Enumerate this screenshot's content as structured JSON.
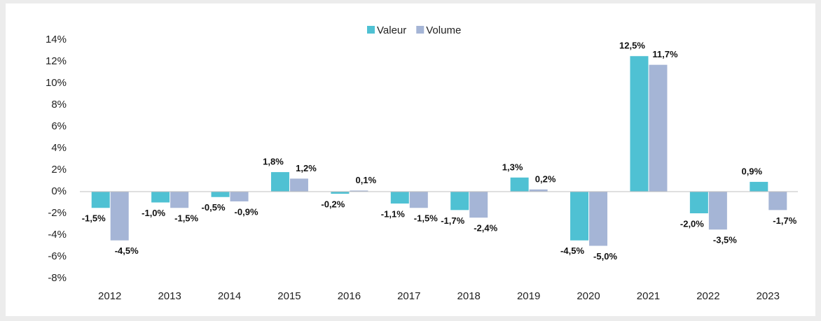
{
  "chart_data": {
    "type": "bar",
    "categories": [
      "2012",
      "2013",
      "2014",
      "2015",
      "2016",
      "2017",
      "2018",
      "2019",
      "2020",
      "2021",
      "2022",
      "2023"
    ],
    "series": [
      {
        "name": "Valeur",
        "color": "#4fc1d3",
        "values": [
          -1.5,
          -1.0,
          -0.5,
          1.8,
          -0.2,
          -1.1,
          -1.7,
          1.3,
          -4.5,
          12.5,
          -2.0,
          0.9
        ],
        "value_labels": [
          "-1,5%",
          "-1,0%",
          "-0,5%",
          "1,8%",
          "-0,2%",
          "-1,1%",
          "-1,7%",
          "1,3%",
          "-4,5%",
          "12,5%",
          "-2,0%",
          "0,9%"
        ]
      },
      {
        "name": "Volume",
        "color": "#a5b5d6",
        "values": [
          -4.5,
          -1.5,
          -0.9,
          1.2,
          0.1,
          -1.5,
          -2.4,
          0.2,
          -5.0,
          11.7,
          -3.5,
          -1.7
        ],
        "value_labels": [
          "-4,5%",
          "-1,5%",
          "-0,9%",
          "1,2%",
          "0,1%",
          "-1,5%",
          "-2,4%",
          "0,2%",
          "-5,0%",
          "11,7%",
          "-3,5%",
          "-1,7%"
        ]
      }
    ],
    "ylim": [
      -8,
      14
    ],
    "yticks": [
      {
        "value": -8,
        "label": "-8%"
      },
      {
        "value": -6,
        "label": "-6%"
      },
      {
        "value": -4,
        "label": "-4%"
      },
      {
        "value": -2,
        "label": "-2%"
      },
      {
        "value": 0,
        "label": "0%"
      },
      {
        "value": 2,
        "label": "2%"
      },
      {
        "value": 4,
        "label": "4%"
      },
      {
        "value": 6,
        "label": "6%"
      },
      {
        "value": 8,
        "label": "8%"
      },
      {
        "value": 10,
        "label": "10%"
      },
      {
        "value": 12,
        "label": "12%"
      },
      {
        "value": 14,
        "label": "14%"
      }
    ],
    "legend": "top",
    "grid": false
  }
}
